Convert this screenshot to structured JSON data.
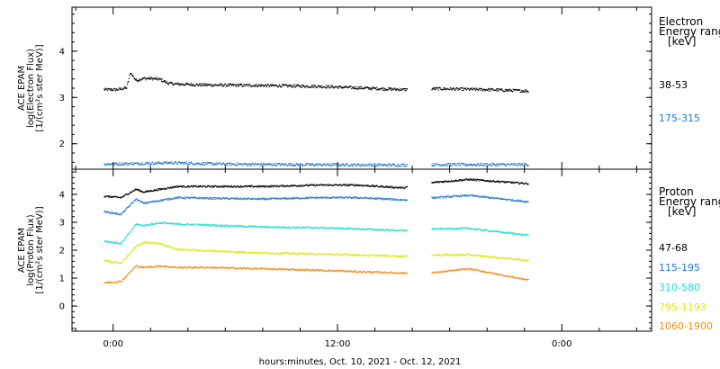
{
  "xlabel": "hours:minutes, Oct. 10, 2021 - Oct. 12, 2021",
  "x_ticks": [
    "0:00",
    "12:00",
    "0:00"
  ],
  "chart_data": [
    {
      "type": "scatter",
      "panel": "electron",
      "ylabel_lines": [
        "ACE EPAM",
        "log(Electron Flux)",
        "[1/(cm²s ster MeV)]"
      ],
      "ylim": [
        1.45,
        4.95
      ],
      "y_ticks": [
        "2",
        "3",
        "4"
      ],
      "legend_title_lines": [
        "Electron",
        "Energy range",
        "[keV]"
      ],
      "x_hours_range": [
        -2.2,
        28.8
      ],
      "gap_hours": [
        15.7,
        17.0
      ],
      "series": [
        {
          "name": "38-53",
          "color": "#000000",
          "values_at": {
            "x": [
              -0.5,
              0.2,
              0.7,
              0.9,
              1.2,
              1.6,
              2.0,
              2.5,
              2.9,
              3.4,
              5,
              8,
              11,
              13,
              15.5,
              17.2,
              20,
              22.2
            ],
            "y": [
              3.18,
              3.18,
              3.22,
              3.55,
              3.38,
              3.42,
              3.42,
              3.4,
              3.32,
              3.3,
              3.28,
              3.27,
              3.25,
              3.22,
              3.18,
              3.2,
              3.18,
              3.15
            ]
          }
        },
        {
          "name": "175-315",
          "color": "#1f78d2",
          "values_at": {
            "x": [
              -0.5,
              1,
              3,
              6,
              10,
              15.5,
              17.2,
              22.2
            ],
            "y": [
              1.57,
              1.58,
              1.6,
              1.57,
              1.56,
              1.55,
              1.56,
              1.56
            ]
          }
        }
      ]
    },
    {
      "type": "scatter",
      "panel": "proton",
      "ylabel_lines": [
        "ACE EPAM",
        "log(Proton Flux)",
        "[1/(cm²s ster MeV)]"
      ],
      "ylim": [
        -0.9,
        4.9
      ],
      "y_ticks": [
        "0",
        "1",
        "2",
        "3",
        "4"
      ],
      "legend_title_lines": [
        "Proton",
        "Energy range",
        "[keV]"
      ],
      "x_hours_range": [
        -2.2,
        28.8
      ],
      "gap_hours": [
        15.7,
        17.0
      ],
      "series": [
        {
          "name": "47-68",
          "color": "#000000",
          "values_at": {
            "x": [
              -0.5,
              0.4,
              1.2,
              1.6,
              2.5,
              3.4,
              5,
              8,
              11,
              13,
              15.5,
              17.2,
              19,
              22.2
            ],
            "y": [
              3.95,
              3.9,
              4.2,
              4.1,
              4.2,
              4.3,
              4.3,
              4.3,
              4.35,
              4.35,
              4.25,
              4.45,
              4.55,
              4.4
            ]
          }
        },
        {
          "name": "115-195",
          "color": "#1f78d2",
          "values_at": {
            "x": [
              -0.5,
              0.4,
              1.2,
              1.6,
              2.5,
              3.4,
              5,
              8,
              11,
              13,
              15.5,
              17.2,
              19,
              22.2
            ],
            "y": [
              3.4,
              3.3,
              3.85,
              3.7,
              3.8,
              3.9,
              3.88,
              3.85,
              3.9,
              3.9,
              3.82,
              3.9,
              3.98,
              3.75
            ]
          }
        },
        {
          "name": "310-580",
          "color": "#22ddd0",
          "values_at": {
            "x": [
              -0.5,
              0.4,
              1.2,
              1.6,
              2.5,
              3.4,
              5,
              8,
              11,
              13,
              15.5,
              17.2,
              19,
              22.2
            ],
            "y": [
              2.35,
              2.25,
              2.95,
              2.9,
              3.0,
              2.95,
              2.92,
              2.85,
              2.82,
              2.78,
              2.72,
              2.78,
              2.8,
              2.55
            ]
          }
        },
        {
          "name": "795-1193",
          "color": "#d8ea10",
          "values_at": {
            "x": [
              -0.5,
              0.4,
              1.2,
              1.6,
              2.5,
              3.4,
              5,
              8,
              11,
              13,
              15.5,
              17.2,
              19,
              22.2
            ],
            "y": [
              1.65,
              1.55,
              2.15,
              2.3,
              2.25,
              2.05,
              2.0,
              1.92,
              1.88,
              1.85,
              1.8,
              1.85,
              1.85,
              1.65
            ]
          }
        },
        {
          "name": "1060-1900",
          "color": "#f08c1e",
          "values_at": {
            "x": [
              -0.5,
              0.4,
              1.2,
              1.6,
              2.5,
              3.4,
              5,
              8,
              11,
              13,
              15.5,
              17.2,
              19,
              22.2
            ],
            "y": [
              0.85,
              0.9,
              1.45,
              1.4,
              1.45,
              1.4,
              1.4,
              1.35,
              1.3,
              1.25,
              1.2,
              1.22,
              1.35,
              0.95
            ]
          }
        }
      ]
    }
  ]
}
